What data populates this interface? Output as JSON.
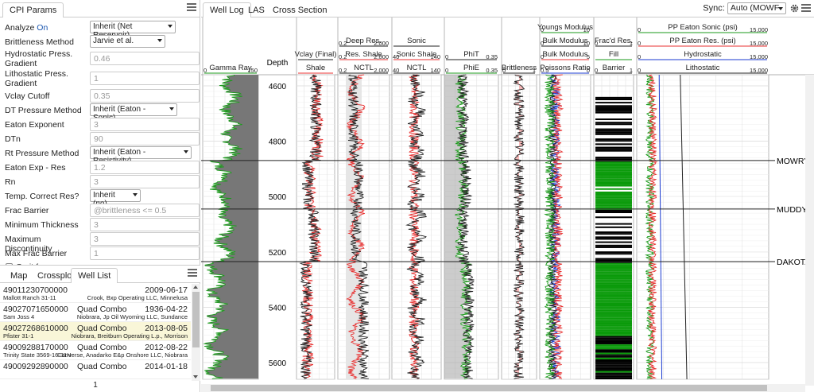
{
  "left_tabs": {
    "cpi": "CPI Params"
  },
  "params": [
    {
      "label": "Analyze On",
      "kind": "select",
      "value": "Inherit (Net Reservoir)",
      "w": 108,
      "color": "#1a56b0"
    },
    {
      "label": "Brittleness Method",
      "kind": "select",
      "value": "Jarvie et al.",
      "w": 95
    },
    {
      "label": "Hydrostatic Press. Gradient",
      "kind": "input",
      "value": "0.46",
      "h2": true
    },
    {
      "label": "Lithostatic Press. Gradient",
      "kind": "input",
      "value": "1",
      "h2": true
    },
    {
      "label": "Vclay Cutoff",
      "kind": "input",
      "value": "0.35"
    },
    {
      "label": "DT Pressure Method",
      "kind": "select",
      "value": "Inherit (Eaton - Sonic)",
      "w": 110
    },
    {
      "label": "Eaton Exponent",
      "kind": "input",
      "value": "3"
    },
    {
      "label": "DTn",
      "kind": "input",
      "value": "90"
    },
    {
      "label": "Rt Pressure Method",
      "kind": "select",
      "value": "Inherit (Eaton - Resistivity)",
      "w": 128
    },
    {
      "label": "Eaton Exp - Res",
      "kind": "input",
      "value": "1.2"
    },
    {
      "label": "Rn",
      "kind": "input",
      "value": "3"
    },
    {
      "label": "Temp. Correct Res?",
      "kind": "select",
      "value": "Inherit (no)",
      "w": 64
    },
    {
      "label": "Frac Barrier",
      "kind": "input",
      "value": "@brittleness <= 0.5"
    },
    {
      "label": "Minimum Thickness",
      "kind": "input",
      "value": "3"
    },
    {
      "label": "Maximum Discontinuity",
      "kind": "input",
      "value": "3"
    },
    {
      "label": "Max Frac Barrier",
      "kind": "input",
      "value": "1"
    },
    {
      "label": "Omit from map",
      "kind": "check"
    }
  ],
  "lower_tabs": [
    "Map",
    "Crossplot",
    "Well List"
  ],
  "wells": [
    {
      "api": "49011230700000",
      "type": "",
      "date": "2009-06-17",
      "name": "Mallott Ranch 31-11",
      "info": "Crook, Bxp Operating LLC, Minnelusa"
    },
    {
      "api": "49027071650000",
      "type": "Quad Combo",
      "date": "1936-04-22",
      "name": "Sam Joss 4",
      "info": "Niobrara, Jp Oil Wyoming LLC, Sundance"
    },
    {
      "api": "49027268610000",
      "type": "Quad Combo",
      "date": "2013-08-05",
      "name": "Pfister 31-1",
      "info": "Niobrara, Breitburn Operating L.p., Morrison",
      "sel": true
    },
    {
      "api": "49009288170000",
      "type": "Quad Combo",
      "date": "2012-08-22",
      "name": "Trinity State 3569-16-31H",
      "info": "Converse, Anadarko E&p Onshore LLC, Niobrara"
    },
    {
      "api": "49009292890000",
      "type": "Quad Combo",
      "date": "2014-01-18",
      "name": "",
      "info": ""
    }
  ],
  "page_number": "1",
  "right_tabs": [
    "Well Log",
    "LAS",
    "Cross Section"
  ],
  "sync": {
    "label": "Sync:",
    "value": "Auto (MOWF"
  },
  "depth_label": "Depth",
  "depth_ticks": [
    "4600",
    "4800",
    "5000",
    "5200",
    "5400",
    "5600"
  ],
  "tops": [
    {
      "name": "MOWRY",
      "depth": 4870
    },
    {
      "name": "MUDDY",
      "depth": 5045
    },
    {
      "name": "DAKOTA",
      "depth": 5235
    }
  ],
  "depth_range": [
    4560,
    5660
  ],
  "tracks": [
    {
      "id": "gr",
      "curves": [
        {
          "name": "Gamma Ray",
          "min": "0",
          "max": "150",
          "color": "#1a9a1a"
        }
      ]
    },
    {
      "id": "vclay",
      "curves": [
        {
          "name": "Shale",
          "min": "",
          "max": "",
          "color": "#e83030"
        },
        {
          "name": "Vclay (Final)",
          "min": "",
          "max": "",
          "color": "#222"
        }
      ]
    },
    {
      "id": "res",
      "curves": [
        {
          "name": "NCTL",
          "min": "0.2",
          "max": "2,000",
          "color": "#222"
        },
        {
          "name": "Res. Shale",
          "min": "0.2",
          "max": "2,000",
          "color": "#e83030"
        },
        {
          "name": "Deep Res.",
          "min": "0.2",
          "max": "2,000",
          "color": "#222"
        }
      ]
    },
    {
      "id": "sonic",
      "curves": [
        {
          "name": "NCTL",
          "min": "40",
          "max": "140",
          "color": "#222"
        },
        {
          "name": "Sonic Shale",
          "min": "40",
          "max": "140",
          "color": "#e83030"
        },
        {
          "name": "Sonic",
          "min": "",
          "max": "",
          "color": "#222"
        }
      ]
    },
    {
      "id": "phi",
      "curves": [
        {
          "name": "PhiE",
          "min": "0",
          "max": "0.35",
          "color": "#1a9a1a"
        },
        {
          "name": "PhiT",
          "min": "0",
          "max": "0.35",
          "color": "#222"
        }
      ]
    },
    {
      "id": "brit",
      "curves": [
        {
          "name": "Brittleness",
          "min": "0",
          "max": "1",
          "color": "#222"
        }
      ]
    },
    {
      "id": "mech",
      "curves": [
        {
          "name": "Poissons Ratio",
          "min": "0.5",
          "max": "0",
          "color": "#1a3ad0"
        },
        {
          "name": "Bulk Modulus",
          "min": "0",
          "max": "5",
          "color": "#e83030"
        },
        {
          "name": "Bulk Modulus",
          "min": "0",
          "max": "10",
          "color": "#222"
        },
        {
          "name": "Youngs Modulus",
          "min": "0",
          "max": "10",
          "color": "#1a9a1a"
        }
      ]
    },
    {
      "id": "frac",
      "curves": [
        {
          "name": "Barrier",
          "min": "0",
          "max": "1",
          "color": "#222"
        },
        {
          "name": "Fill",
          "min": "",
          "max": "",
          "color": "#1a9a1a"
        },
        {
          "name": "Frac'd Res.",
          "min": "0",
          "max": "1",
          "color": "#222"
        }
      ]
    },
    {
      "id": "pp",
      "curves": [
        {
          "name": "Lithostatic",
          "min": "0",
          "max": "15,000",
          "color": "#222"
        },
        {
          "name": "Hydrostatic",
          "min": "0",
          "max": "15,000",
          "color": "#1a3ad0"
        },
        {
          "name": "PP Eaton Res. (psi)",
          "min": "0",
          "max": "15,000",
          "color": "#e83030"
        },
        {
          "name": "PP Eaton Sonic (psi)",
          "min": "0",
          "max": "15,000",
          "color": "#1a9a1a"
        }
      ]
    }
  ]
}
